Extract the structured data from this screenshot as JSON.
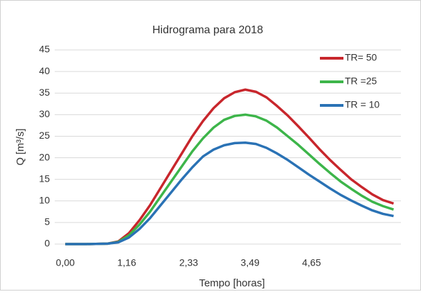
{
  "chart_data": {
    "type": "line",
    "title": "Hidrograma para 2018",
    "x_label": "Tempo [horas]",
    "y_label": "Q [m³/s]",
    "x": [
      0,
      0.4,
      0.8,
      1.0,
      1.2,
      1.4,
      1.6,
      1.8,
      2.0,
      2.2,
      2.4,
      2.6,
      2.8,
      3.0,
      3.2,
      3.4,
      3.6,
      3.8,
      4.0,
      4.2,
      4.4,
      4.6,
      4.8,
      5.0,
      5.2,
      5.4,
      5.6,
      5.8,
      6.0,
      6.2
    ],
    "series": [
      {
        "name": "TR= 50",
        "color": "#c8262c",
        "values": [
          0,
          0,
          0.1,
          0.6,
          2.5,
          5.5,
          9,
          13,
          17,
          21,
          25,
          28.5,
          31.5,
          33.8,
          35.2,
          35.8,
          35.3,
          34,
          32,
          29.8,
          27.3,
          24.7,
          22,
          19.5,
          17.2,
          15,
          13.2,
          11.5,
          10.2,
          9.4
        ]
      },
      {
        "name": "TR =25",
        "color": "#3db54a",
        "values": [
          0,
          0,
          0.1,
          0.5,
          2,
          4.5,
          7.5,
          11,
          14.5,
          18,
          21.5,
          24.5,
          27,
          28.8,
          29.7,
          30,
          29.6,
          28.6,
          27,
          25,
          23,
          20.8,
          18.6,
          16.5,
          14.5,
          12.8,
          11.2,
          9.8,
          8.8,
          8
        ]
      },
      {
        "name": "TR = 10",
        "color": "#2a72b5",
        "values": [
          0,
          0,
          0.1,
          0.4,
          1.5,
          3.5,
          6,
          9,
          12,
          15,
          17.8,
          20.3,
          21.9,
          22.9,
          23.4,
          23.5,
          23.2,
          22.3,
          21,
          19.5,
          17.8,
          16.1,
          14.5,
          12.9,
          11.4,
          10.1,
          8.9,
          7.8,
          7,
          6.5
        ]
      }
    ],
    "xlim": [
      -0.2,
      6.6
    ],
    "xticks": [
      {
        "value": 0,
        "label": "0,00"
      },
      {
        "value": 1.16,
        "label": "1,16"
      },
      {
        "value": 2.33,
        "label": "2,33"
      },
      {
        "value": 3.49,
        "label": "3,49"
      },
      {
        "value": 4.65,
        "label": "4,65"
      }
    ],
    "ylim": [
      0,
      45
    ],
    "yticks": [
      0,
      5,
      10,
      15,
      20,
      25,
      30,
      35,
      40,
      45
    ],
    "grid": true,
    "legend": "top-right"
  }
}
